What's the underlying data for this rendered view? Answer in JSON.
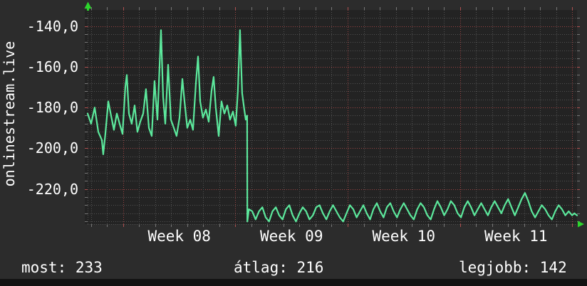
{
  "watermark": {
    "text": "onlinestream.live"
  },
  "stats": {
    "items": [
      {
        "label": "most",
        "value": "233",
        "text": "most: 233"
      },
      {
        "label": "átlag",
        "value": "216",
        "text": "átlag: 216"
      },
      {
        "label": "legjobb",
        "value": "142",
        "text": "legjobb: 142"
      }
    ]
  },
  "colors": {
    "outer_bg": "#2c2c2c",
    "plot_bg": "#232323",
    "minor_grid": "#515151",
    "major_grid": "#9a4444",
    "tick_gray": "#777777",
    "tick_red": "#b05050",
    "series_line": "#5ce89c",
    "axis_arrow": "#2dd62d",
    "text": "#ffffff",
    "footer_bg": "#131313"
  },
  "chart_data": {
    "type": "line",
    "title": "",
    "xlabel": "",
    "ylabel": "",
    "legend": "none",
    "grid": "dotted, minor gray daily/4-unit, major red weekly/20-unit",
    "x_axis": {
      "unit": "week number",
      "xlim_weeks": [
        7.683,
        12.044
      ],
      "major_week_lines": [
        8,
        9,
        10,
        11,
        12
      ],
      "minor_divisions_per_week": 7,
      "labels": [
        {
          "text": "Week 08",
          "center_week": 8.5
        },
        {
          "text": "Week 09",
          "center_week": 9.5
        },
        {
          "text": "Week 10",
          "center_week": 10.5
        },
        {
          "text": "Week 11",
          "center_week": 11.5
        }
      ]
    },
    "y_axis": {
      "ylim": [
        -237.3,
        -132.1
      ],
      "minor_step": 4,
      "ticks": [
        {
          "value": -140,
          "label": "-140,0"
        },
        {
          "value": -160,
          "label": "-160,0"
        },
        {
          "value": -180,
          "label": "-180,0"
        },
        {
          "value": -200,
          "label": "-200,0"
        },
        {
          "value": -220,
          "label": "-220,0"
        }
      ]
    },
    "series": [
      {
        "name": "onlinestream.live",
        "color": "#5ce89c",
        "points": [
          [
            7.683,
            -183
          ],
          [
            7.714,
            -188
          ],
          [
            7.746,
            -180
          ],
          [
            7.778,
            -192
          ],
          [
            7.81,
            -196
          ],
          [
            7.822,
            -203
          ],
          [
            7.841,
            -193
          ],
          [
            7.867,
            -177
          ],
          [
            7.892,
            -184
          ],
          [
            7.917,
            -191
          ],
          [
            7.943,
            -183
          ],
          [
            7.968,
            -188
          ],
          [
            7.994,
            -193
          ],
          [
            8.019,
            -170
          ],
          [
            8.032,
            -164
          ],
          [
            8.051,
            -183
          ],
          [
            8.076,
            -188
          ],
          [
            8.102,
            -179
          ],
          [
            8.127,
            -192
          ],
          [
            8.152,
            -187
          ],
          [
            8.178,
            -183
          ],
          [
            8.203,
            -171
          ],
          [
            8.229,
            -190
          ],
          [
            8.254,
            -194
          ],
          [
            8.279,
            -167
          ],
          [
            8.305,
            -186
          ],
          [
            8.337,
            -142
          ],
          [
            8.356,
            -175
          ],
          [
            8.375,
            -188
          ],
          [
            8.4,
            -159
          ],
          [
            8.425,
            -186
          ],
          [
            8.451,
            -190
          ],
          [
            8.476,
            -194
          ],
          [
            8.502,
            -185
          ],
          [
            8.527,
            -166
          ],
          [
            8.546,
            -177
          ],
          [
            8.571,
            -190
          ],
          [
            8.597,
            -186
          ],
          [
            8.622,
            -191
          ],
          [
            8.648,
            -168
          ],
          [
            8.667,
            -155
          ],
          [
            8.686,
            -177
          ],
          [
            8.711,
            -185
          ],
          [
            8.737,
            -181
          ],
          [
            8.762,
            -187
          ],
          [
            8.787,
            -172
          ],
          [
            8.806,
            -165
          ],
          [
            8.825,
            -180
          ],
          [
            8.851,
            -194
          ],
          [
            8.876,
            -177
          ],
          [
            8.902,
            -183
          ],
          [
            8.927,
            -179
          ],
          [
            8.952,
            -186
          ],
          [
            8.978,
            -182
          ],
          [
            9.003,
            -189
          ],
          [
            9.022,
            -172
          ],
          [
            9.041,
            -142
          ],
          [
            9.06,
            -173
          ],
          [
            9.079,
            -181
          ],
          [
            9.092,
            -186
          ],
          [
            9.104,
            -184
          ],
          [
            9.106,
            -236
          ],
          [
            9.12,
            -230
          ],
          [
            9.15,
            -231
          ],
          [
            9.18,
            -235
          ],
          [
            9.21,
            -231
          ],
          [
            9.24,
            -229
          ],
          [
            9.27,
            -234
          ],
          [
            9.3,
            -236
          ],
          [
            9.33,
            -231
          ],
          [
            9.36,
            -229
          ],
          [
            9.39,
            -233
          ],
          [
            9.42,
            -235
          ],
          [
            9.45,
            -230
          ],
          [
            9.48,
            -228
          ],
          [
            9.51,
            -233
          ],
          [
            9.54,
            -236
          ],
          [
            9.57,
            -232
          ],
          [
            9.6,
            -229
          ],
          [
            9.63,
            -231
          ],
          [
            9.66,
            -235
          ],
          [
            9.69,
            -233
          ],
          [
            9.72,
            -229
          ],
          [
            9.75,
            -228
          ],
          [
            9.78,
            -232
          ],
          [
            9.81,
            -235
          ],
          [
            9.84,
            -231
          ],
          [
            9.87,
            -228
          ],
          [
            9.9,
            -231
          ],
          [
            9.93,
            -234
          ],
          [
            9.96,
            -236
          ],
          [
            9.99,
            -232
          ],
          [
            10.02,
            -228
          ],
          [
            10.05,
            -230
          ],
          [
            10.08,
            -234
          ],
          [
            10.11,
            -231
          ],
          [
            10.14,
            -228
          ],
          [
            10.17,
            -232
          ],
          [
            10.2,
            -235
          ],
          [
            10.23,
            -230
          ],
          [
            10.26,
            -227
          ],
          [
            10.29,
            -231
          ],
          [
            10.32,
            -234
          ],
          [
            10.35,
            -229
          ],
          [
            10.38,
            -227
          ],
          [
            10.41,
            -231
          ],
          [
            10.44,
            -234
          ],
          [
            10.47,
            -230
          ],
          [
            10.5,
            -227
          ],
          [
            10.53,
            -230
          ],
          [
            10.56,
            -233
          ],
          [
            10.59,
            -235
          ],
          [
            10.62,
            -230
          ],
          [
            10.65,
            -227
          ],
          [
            10.68,
            -229
          ],
          [
            10.71,
            -233
          ],
          [
            10.74,
            -235
          ],
          [
            10.77,
            -230
          ],
          [
            10.8,
            -226
          ],
          [
            10.83,
            -229
          ],
          [
            10.86,
            -233
          ],
          [
            10.89,
            -230
          ],
          [
            10.92,
            -226
          ],
          [
            10.95,
            -228
          ],
          [
            10.98,
            -232
          ],
          [
            11.01,
            -234
          ],
          [
            11.04,
            -229
          ],
          [
            11.07,
            -226
          ],
          [
            11.1,
            -229
          ],
          [
            11.13,
            -233
          ],
          [
            11.16,
            -230
          ],
          [
            11.19,
            -227
          ],
          [
            11.22,
            -230
          ],
          [
            11.25,
            -233
          ],
          [
            11.28,
            -229
          ],
          [
            11.31,
            -226
          ],
          [
            11.34,
            -229
          ],
          [
            11.37,
            -232
          ],
          [
            11.4,
            -228
          ],
          [
            11.43,
            -225
          ],
          [
            11.46,
            -229
          ],
          [
            11.49,
            -233
          ],
          [
            11.52,
            -229
          ],
          [
            11.55,
            -225
          ],
          [
            11.58,
            -222
          ],
          [
            11.61,
            -226
          ],
          [
            11.64,
            -231
          ],
          [
            11.67,
            -234
          ],
          [
            11.7,
            -231
          ],
          [
            11.73,
            -228
          ],
          [
            11.76,
            -230
          ],
          [
            11.79,
            -233
          ],
          [
            11.82,
            -235
          ],
          [
            11.85,
            -231
          ],
          [
            11.88,
            -228
          ],
          [
            11.91,
            -230
          ],
          [
            11.94,
            -233
          ],
          [
            11.97,
            -231
          ],
          [
            12.0,
            -233
          ],
          [
            12.02,
            -232
          ],
          [
            12.044,
            -233
          ]
        ]
      }
    ]
  }
}
